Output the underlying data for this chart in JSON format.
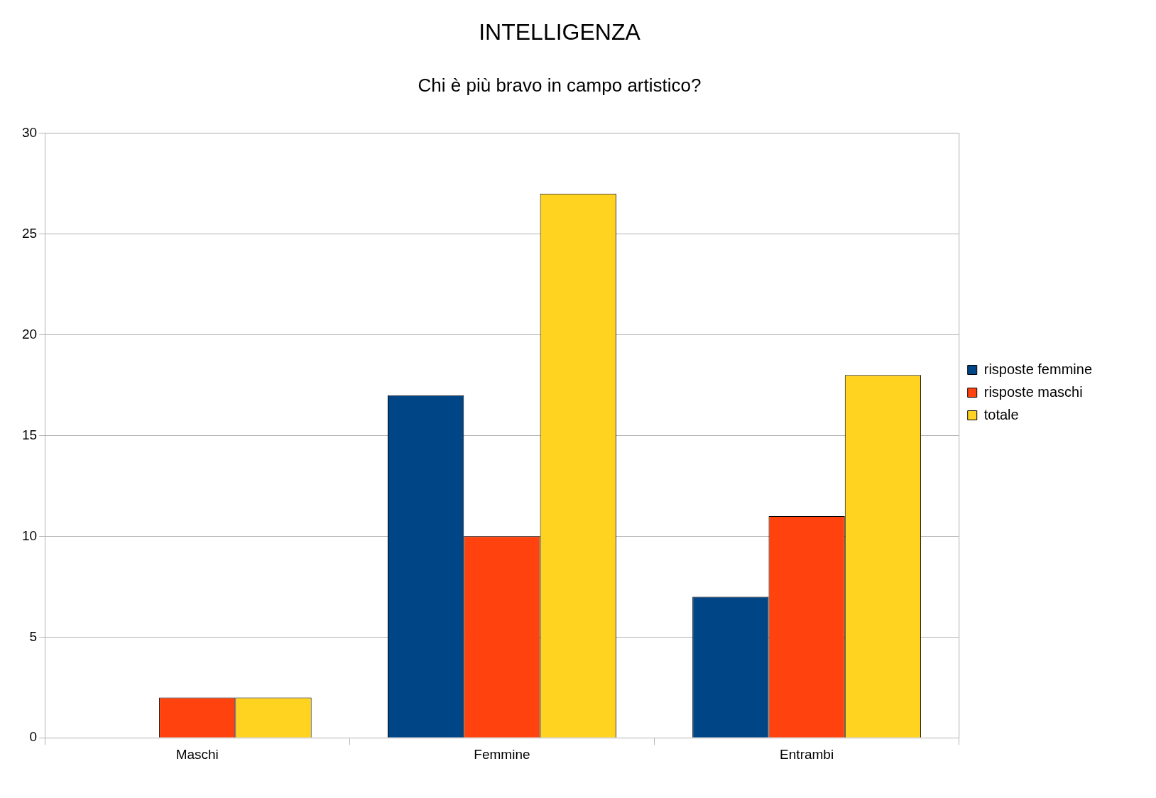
{
  "chart_data": {
    "type": "bar",
    "title": "INTELLIGENZA",
    "subtitle": "Chi è più bravo in campo artistico?",
    "categories": [
      "Maschi",
      "Femmine",
      "Entrambi"
    ],
    "series": [
      {
        "name": "risposte femmine",
        "color": "#004586",
        "values": [
          0,
          17,
          7
        ]
      },
      {
        "name": "risposte maschi",
        "color": "#ff420e",
        "values": [
          2,
          10,
          11
        ]
      },
      {
        "name": "totale",
        "color": "#ffd320",
        "values": [
          2,
          27,
          18
        ]
      }
    ],
    "ylim": [
      0,
      30
    ],
    "yticks": [
      0,
      5,
      10,
      15,
      20,
      25,
      30
    ],
    "grid": "y",
    "legend": "right"
  }
}
